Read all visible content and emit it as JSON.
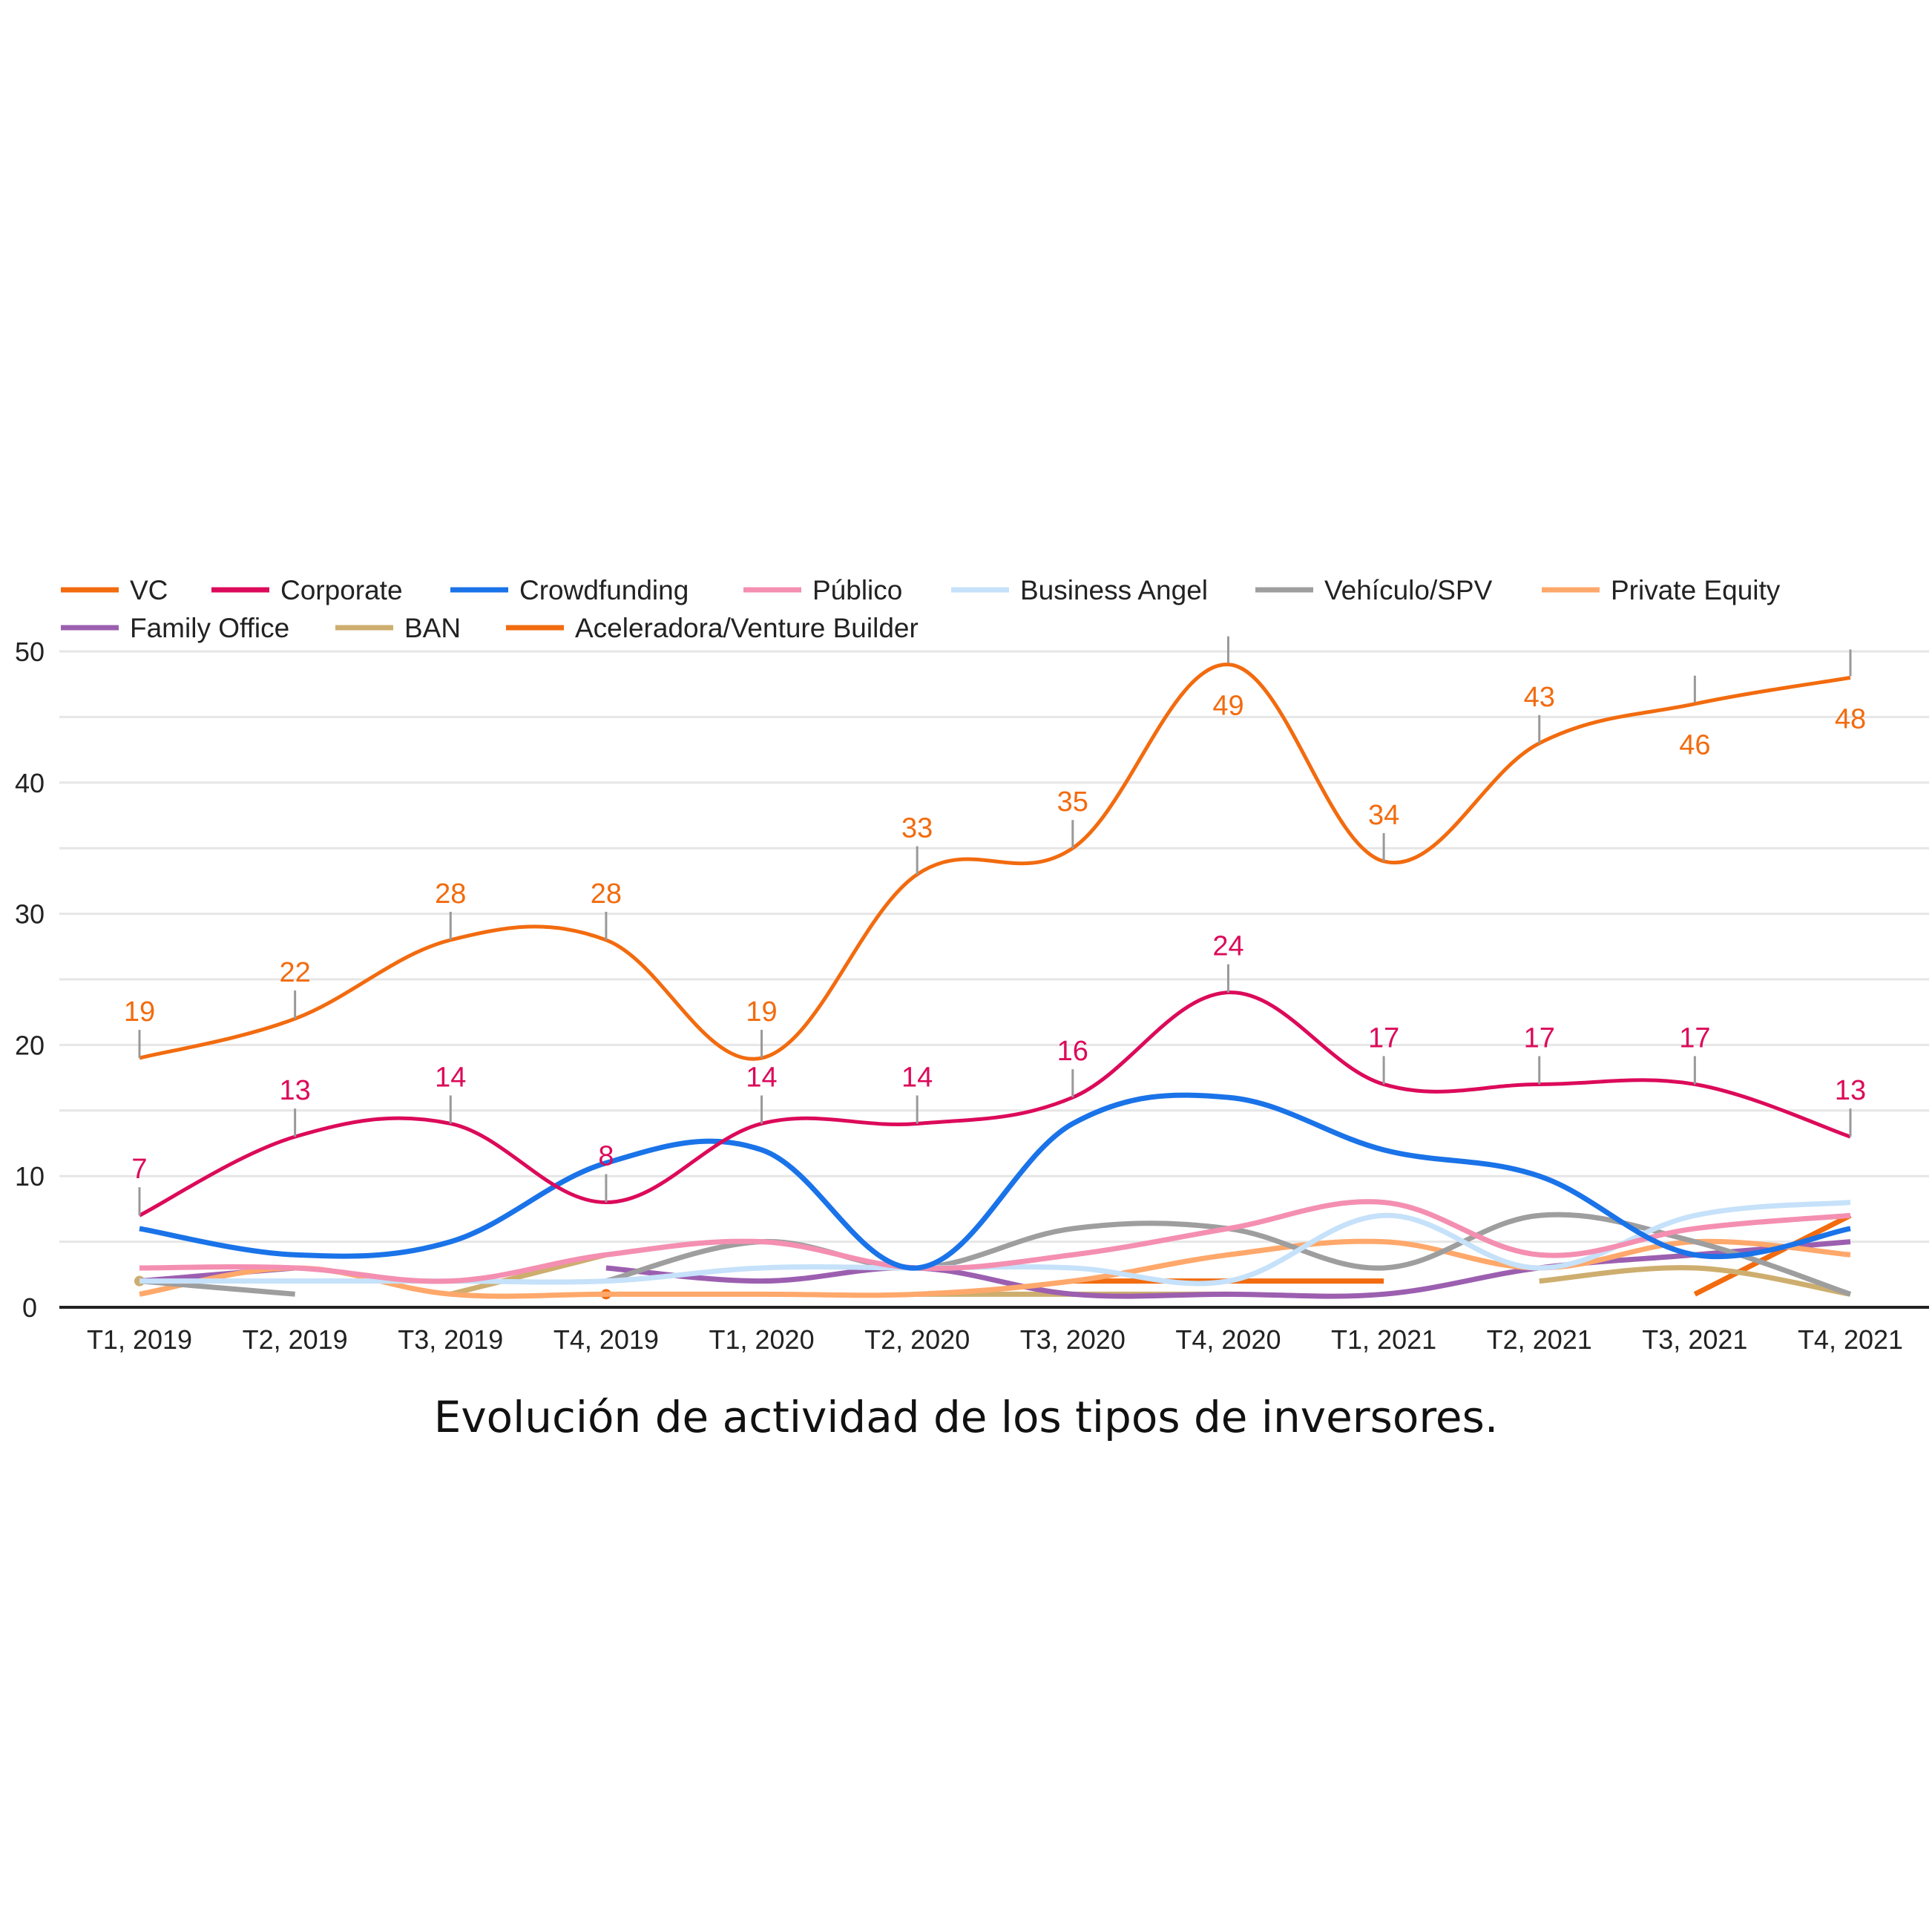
{
  "chart_data": {
    "type": "line",
    "title": "Evolución de actividad de los tipos de inversores.",
    "categories": [
      "T1, 2019",
      "T2, 2019",
      "T3, 2019",
      "T4, 2019",
      "T1, 2020",
      "T2, 2020",
      "T3, 2020",
      "T4, 2020",
      "T1, 2021",
      "T2, 2021",
      "T3, 2021",
      "T4, 2021"
    ],
    "ylim": [
      0,
      50
    ],
    "yticks": [
      0,
      10,
      20,
      30,
      40,
      50
    ],
    "grid": true,
    "legend": "top",
    "smooth": true,
    "series": [
      {
        "name": "VC",
        "color": "#f26b0f",
        "labels": true,
        "values": [
          19,
          22,
          28,
          28,
          19,
          33,
          35,
          49,
          34,
          43,
          46,
          48
        ]
      },
      {
        "name": "Corporate",
        "color": "#dc0a5a",
        "labels": true,
        "values": [
          7,
          13,
          14,
          8,
          14,
          14,
          16,
          24,
          17,
          17,
          17,
          13
        ]
      },
      {
        "name": "Crowdfunding",
        "color": "#1a73e8",
        "values": [
          6,
          4,
          5,
          11,
          12,
          3,
          14,
          16,
          12,
          10,
          4,
          6
        ]
      },
      {
        "name": "Público",
        "color": "#f48fb1",
        "values": [
          3,
          3,
          2,
          4,
          5,
          3,
          4,
          6,
          8,
          4,
          6,
          7
        ]
      },
      {
        "name": "Business Angel",
        "color": "#c6e1fa",
        "values": [
          2,
          2,
          2,
          2,
          3,
          3,
          3,
          2,
          7,
          3,
          7,
          8
        ]
      },
      {
        "name": "Vehículo/SPV",
        "color": "#9e9e9e",
        "values": [
          2,
          1,
          null,
          2,
          5,
          3,
          6,
          6,
          3,
          7,
          5,
          1
        ]
      },
      {
        "name": "Private Equity",
        "color": "#ffa86b",
        "values": [
          1,
          3,
          1,
          1,
          1,
          1,
          2,
          4,
          5,
          3,
          5,
          4
        ]
      },
      {
        "name": "Family Office",
        "color": "#9c5fb0",
        "values": [
          2,
          3,
          null,
          3,
          2,
          3,
          1,
          1,
          1,
          3,
          4,
          5
        ]
      },
      {
        "name": "BAN",
        "color": "#cdae6e",
        "values": [
          2,
          null,
          1,
          4,
          null,
          1,
          1,
          1,
          null,
          2,
          3,
          1
        ]
      },
      {
        "name": "Aceleradora/Venture Builder",
        "color": "#f26b0f",
        "values": [
          null,
          null,
          null,
          1,
          null,
          null,
          2,
          2,
          2,
          null,
          1,
          7
        ]
      }
    ]
  }
}
